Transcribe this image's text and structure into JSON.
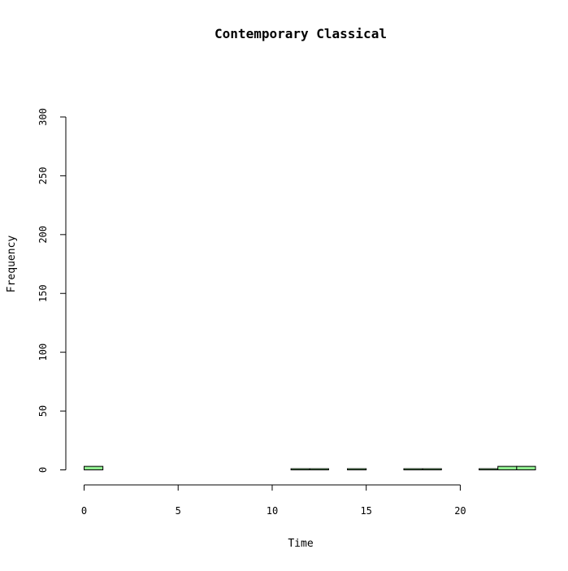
{
  "chart_data": {
    "type": "bar",
    "title": "Contemporary Classical",
    "xlabel": "Time",
    "ylabel": "Frequency",
    "xlim": [
      0,
      24
    ],
    "ylim": [
      0,
      300
    ],
    "x_ticks": [
      0,
      5,
      10,
      15,
      20
    ],
    "y_ticks": [
      0,
      50,
      100,
      150,
      200,
      250,
      300
    ],
    "bin_edges": [
      0,
      1,
      2,
      3,
      4,
      5,
      6,
      7,
      8,
      9,
      10,
      11,
      12,
      13,
      14,
      15,
      16,
      17,
      18,
      19,
      20,
      21,
      22,
      23,
      24
    ],
    "values": [
      3,
      0,
      0,
      0,
      0,
      0,
      0,
      0,
      0,
      0,
      0,
      1,
      1,
      0,
      1,
      0,
      0,
      1,
      1,
      0,
      0,
      1,
      3,
      3
    ],
    "bar_color": "#90EE90",
    "bar_border_color": "#000000",
    "grid": false,
    "legend": "none"
  }
}
